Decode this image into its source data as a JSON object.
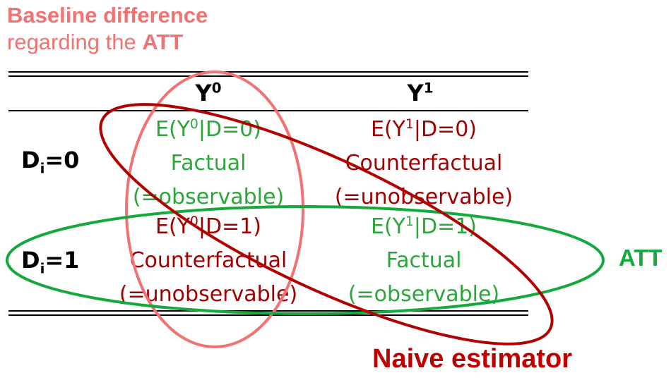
{
  "baseline": {
    "line1": "Baseline difference",
    "line2_prefix": "regarding the ",
    "line2_bold": "ATT"
  },
  "header": {
    "col0": "Y",
    "col0_sup": "0",
    "col1": "Y",
    "col1_sup": "1"
  },
  "rows": [
    {
      "label": "D",
      "label_sub": "i",
      "label_suffix": "=0",
      "left": {
        "expr_pre": "E(Y",
        "expr_sup": "0",
        "expr_post": "|D=0)",
        "kind": "Factual",
        "obs": "(=observable)"
      },
      "right": {
        "expr_pre": "E(Y",
        "expr_sup": "1",
        "expr_post": "|D=0)",
        "kind": "Counterfactual",
        "obs": "(=unobservable)"
      }
    },
    {
      "label": "D",
      "label_sub": "i",
      "label_suffix": "=1",
      "left": {
        "expr_pre": "E(Y",
        "expr_sup": "0",
        "expr_post": "|D=1)",
        "kind": "Counterfactual",
        "obs": "(=unobservable)"
      },
      "right": {
        "expr_pre": "E(Y",
        "expr_sup": "1",
        "expr_post": "|D=1)",
        "kind": "Factual",
        "obs": "(=observable)"
      }
    }
  ],
  "att_label": "ATT",
  "naive_label": "Naive estimator",
  "colors": {
    "factual": "#2aa63a",
    "counterfactual": "#a00000",
    "baseline": "#f07272",
    "att": "#14a93c",
    "naive": "#c00000"
  }
}
